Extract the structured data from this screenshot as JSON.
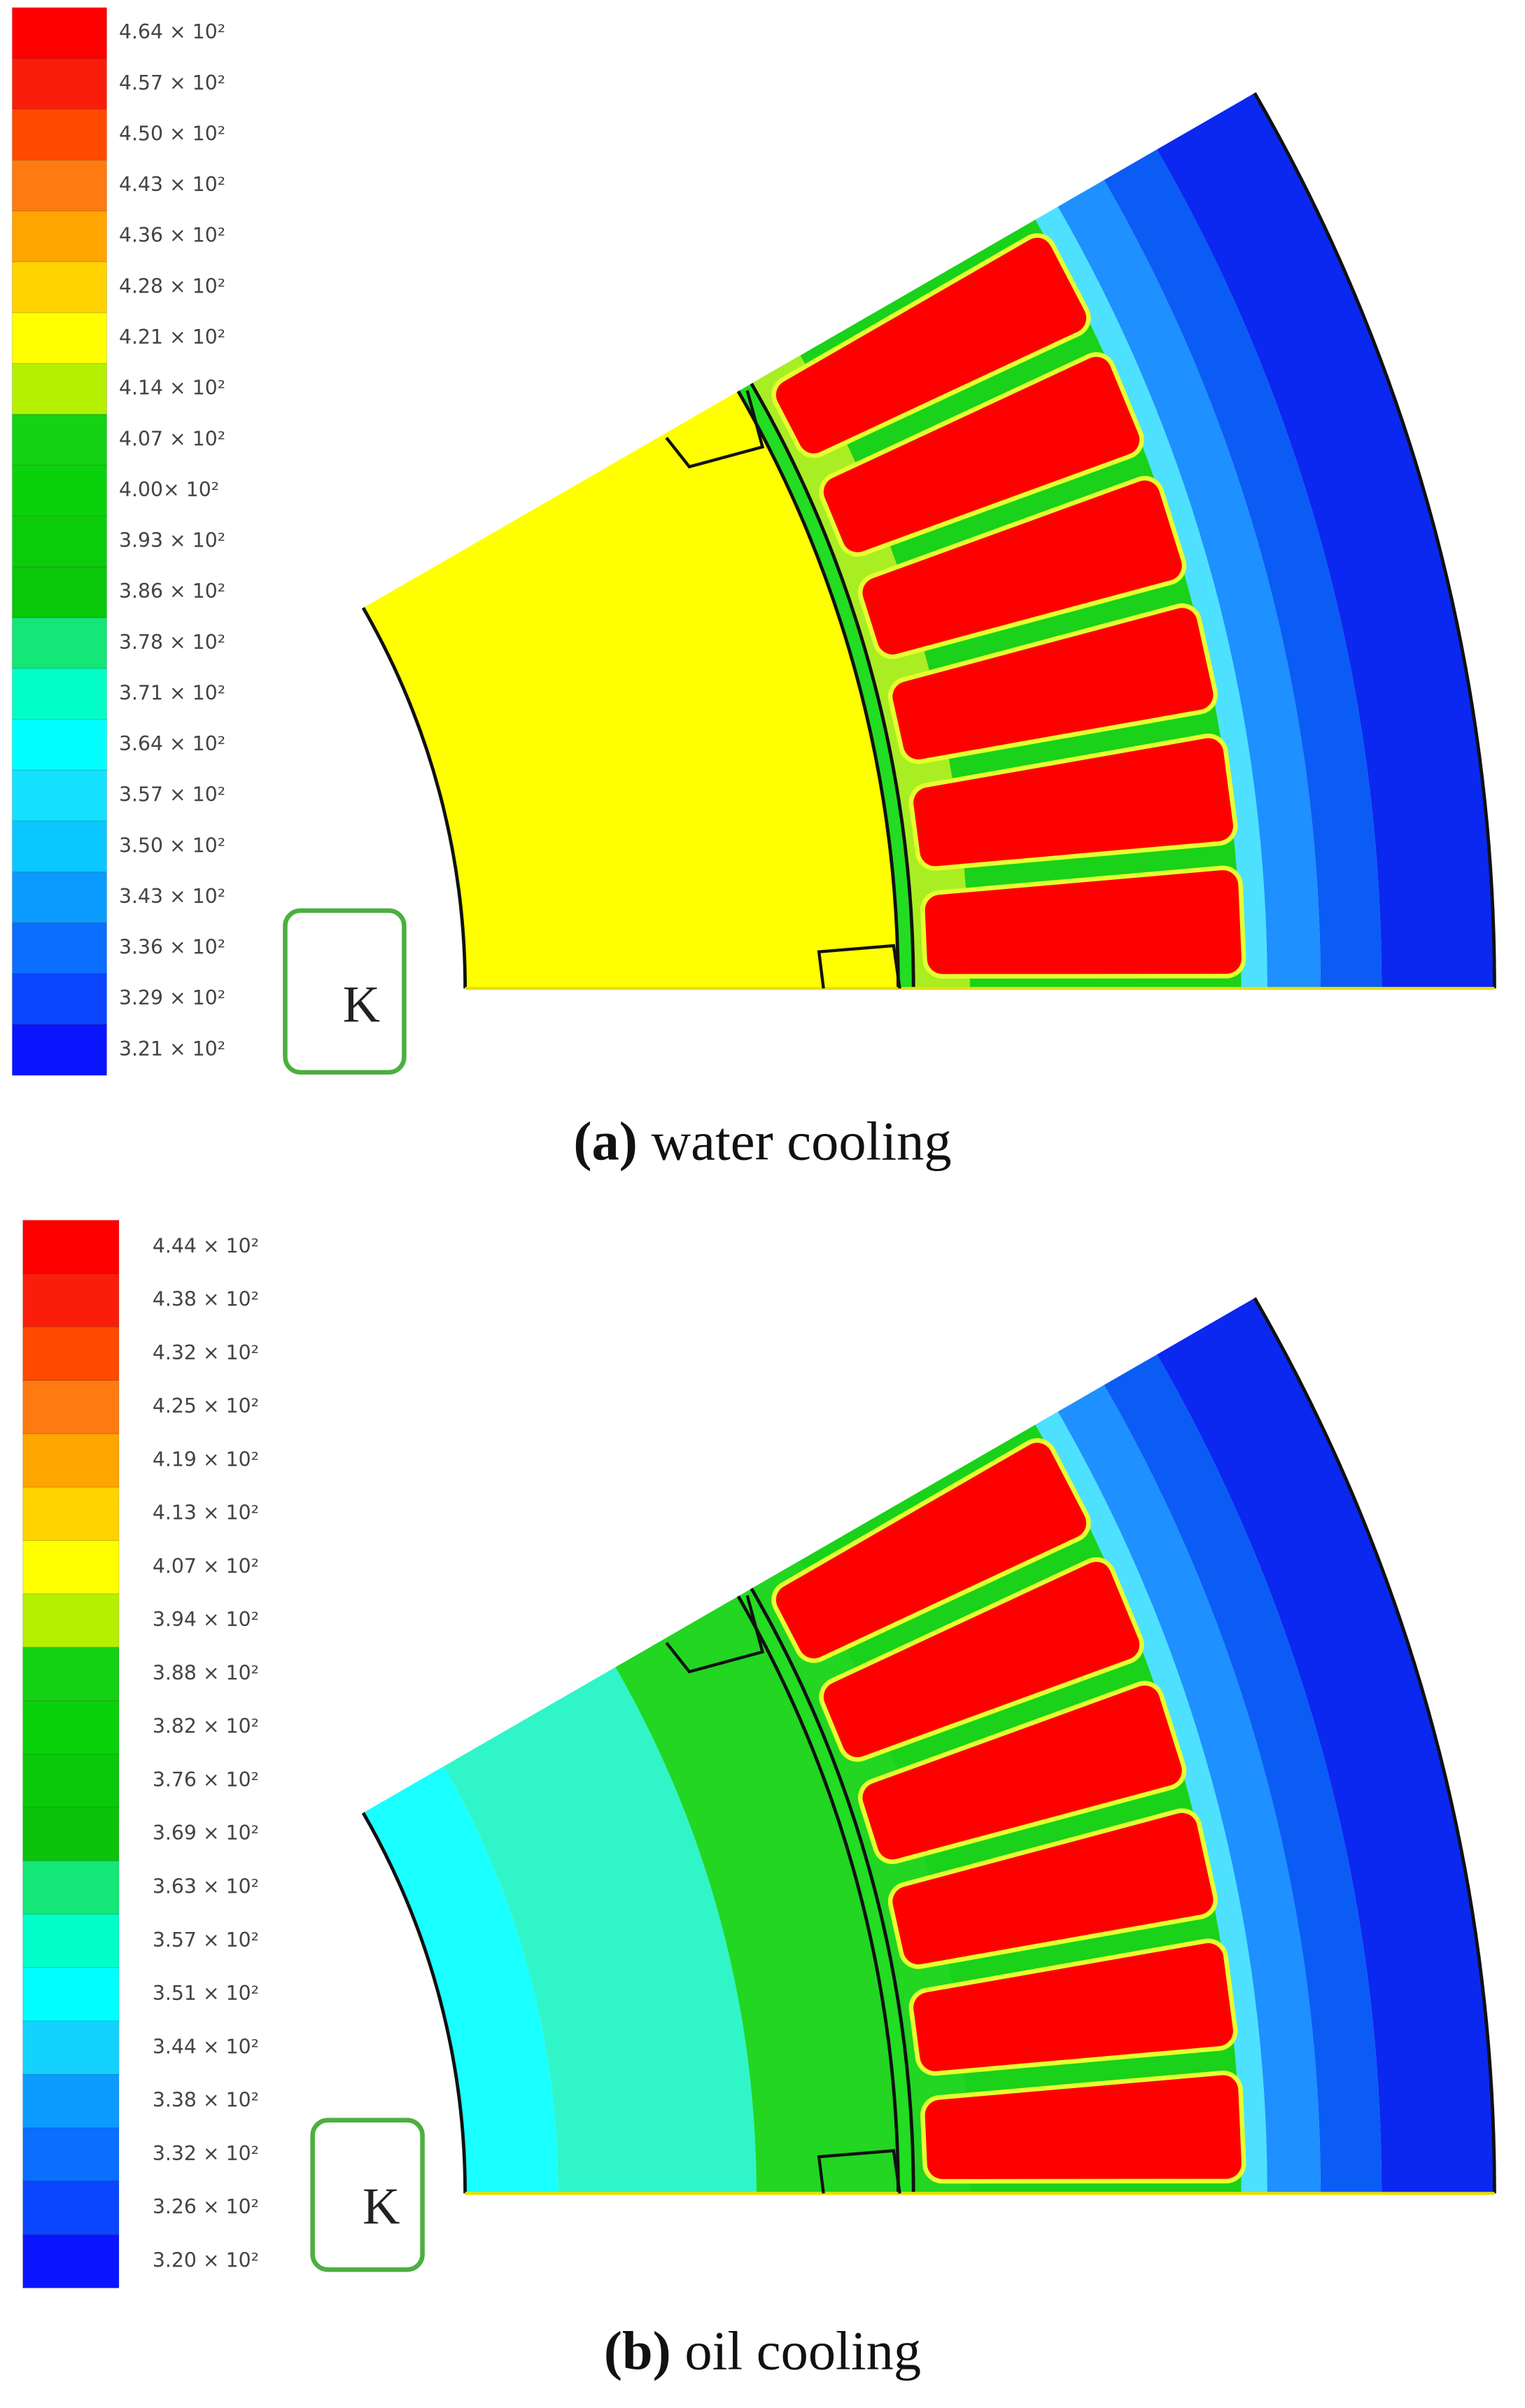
{
  "panels": [
    {
      "legend": {
        "labels": [
          "4.64 × 10²",
          "4.57 × 10²",
          "4.50 × 10²",
          "4.43 × 10²",
          "4.36 × 10²",
          "4.28 × 10²",
          "4.21 × 10²",
          "4.14 × 10²",
          "4.07 × 10²",
          "4.00× 10²",
          "3.93 × 10²",
          "3.86 × 10²",
          "3.78 × 10²",
          "3.71 × 10²",
          "3.64 × 10²",
          "3.57 × 10²",
          "3.50 × 10²",
          "3.43 × 10²",
          "3.36 × 10²",
          "3.29 × 10²",
          "3.21 × 10²"
        ],
        "colors": [
          "#ff0000",
          "#fa1e0a",
          "#ff4a00",
          "#ff7a10",
          "#ffa500",
          "#ffd200",
          "#ffff00",
          "#b4f000",
          "#14d214",
          "#0ad20a",
          "#0acd0a",
          "#0ac80a",
          "#14e678",
          "#00ffc8",
          "#00ffff",
          "#14e1ff",
          "#0ac8ff",
          "#0a9bff",
          "#0a6eff",
          "#0a46ff",
          "#0a14ff"
        ]
      },
      "unit": "K",
      "caption": {
        "label": "(a)",
        "text": "water cooling"
      }
    },
    {
      "legend": {
        "labels": [
          "4.44 × 10²",
          "4.38 × 10²",
          "4.32 × 10²",
          "4.25 × 10²",
          "4.19 × 10²",
          "4.13 × 10²",
          "4.07 × 10²",
          "3.94 × 10²",
          "3.88 × 10²",
          "3.82 × 10²",
          "3.76 × 10²",
          "3.69 × 10²",
          "3.63 × 10²",
          "3.57 × 10²",
          "3.51 × 10²",
          "3.44 × 10²",
          "3.38 × 10²",
          "3.32 × 10²",
          "3.26 × 10²",
          "3.20 × 10²"
        ],
        "colors": [
          "#ff0000",
          "#fa1e0a",
          "#ff4a00",
          "#ff7a10",
          "#ffa500",
          "#ffd200",
          "#ffff00",
          "#b4f000",
          "#14d214",
          "#0ad20a",
          "#0ac80a",
          "#0ac30a",
          "#14e678",
          "#00ffc8",
          "#00ffff",
          "#14d2ff",
          "#0a9bff",
          "#0a6eff",
          "#0a46ff",
          "#0a14ff"
        ]
      },
      "unit": "K",
      "caption": {
        "label": "(b)",
        "text": "oil cooling"
      }
    }
  ]
}
